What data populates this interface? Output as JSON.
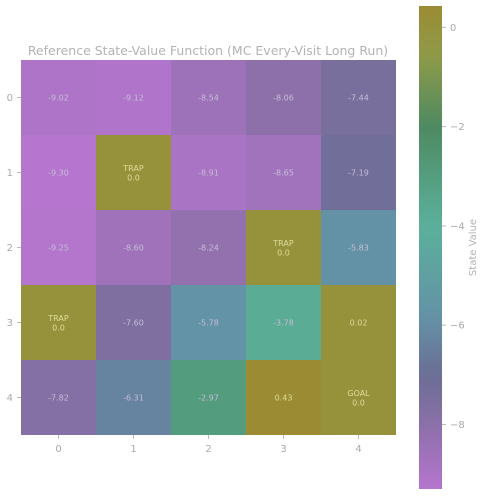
{
  "chart_data": {
    "type": "heatmap",
    "title": "Reference State-Value Function (MC Every-Visit Long Run)",
    "x_ticks": [
      "0",
      "1",
      "2",
      "3",
      "4"
    ],
    "y_ticks": [
      "0",
      "1",
      "2",
      "3",
      "4"
    ],
    "rows": [
      [
        {
          "value": -9.02,
          "label": "-9.02"
        },
        {
          "value": -9.12,
          "label": "-9.12"
        },
        {
          "value": -8.54,
          "label": "-8.54"
        },
        {
          "value": -8.06,
          "label": "-8.06"
        },
        {
          "value": -7.44,
          "label": "-7.44"
        }
      ],
      [
        {
          "value": -9.3,
          "label": "-9.30"
        },
        {
          "value": 0.0,
          "label": "TRAP\n0.0"
        },
        {
          "value": -8.91,
          "label": "-8.91"
        },
        {
          "value": -8.65,
          "label": "-8.65"
        },
        {
          "value": -7.19,
          "label": "-7.19"
        }
      ],
      [
        {
          "value": -9.25,
          "label": "-9.25"
        },
        {
          "value": -8.6,
          "label": "-8.60"
        },
        {
          "value": -8.24,
          "label": "-8.24"
        },
        {
          "value": 0.0,
          "label": "TRAP\n0.0"
        },
        {
          "value": -5.83,
          "label": "-5.83"
        }
      ],
      [
        {
          "value": 0.0,
          "label": "TRAP\n0.0"
        },
        {
          "value": -7.6,
          "label": "-7.60"
        },
        {
          "value": -5.78,
          "label": "-5.78"
        },
        {
          "value": -3.78,
          "label": "-3.78"
        },
        {
          "value": 0.02,
          "label": "0.02"
        }
      ],
      [
        {
          "value": -7.82,
          "label": "-7.82"
        },
        {
          "value": -6.31,
          "label": "-6.31"
        },
        {
          "value": -2.97,
          "label": "-2.97"
        },
        {
          "value": 0.43,
          "label": "0.43"
        },
        {
          "value": 0.0,
          "label": "GOAL\n0.0"
        }
      ]
    ],
    "colorbar": {
      "label": "State Value",
      "range": [
        -9.3,
        0.43
      ],
      "ticks": [
        0,
        -2,
        -4,
        -6,
        -8
      ],
      "tick_labels": [
        "0",
        "−2",
        "−4",
        "−6",
        "−8"
      ]
    },
    "colormap": {
      "stops": [
        {
          "v": -9.3,
          "color": "#b675cf"
        },
        {
          "v": -8.0,
          "color": "#8b70a8"
        },
        {
          "v": -7.0,
          "color": "#6b6e95"
        },
        {
          "v": -5.8,
          "color": "#6393a6"
        },
        {
          "v": -4.0,
          "color": "#5bb09b"
        },
        {
          "v": -2.0,
          "color": "#4e8a62"
        },
        {
          "v": -0.6,
          "color": "#8e9a49"
        },
        {
          "v": 0.43,
          "color": "#9b8c33"
        }
      ]
    }
  }
}
